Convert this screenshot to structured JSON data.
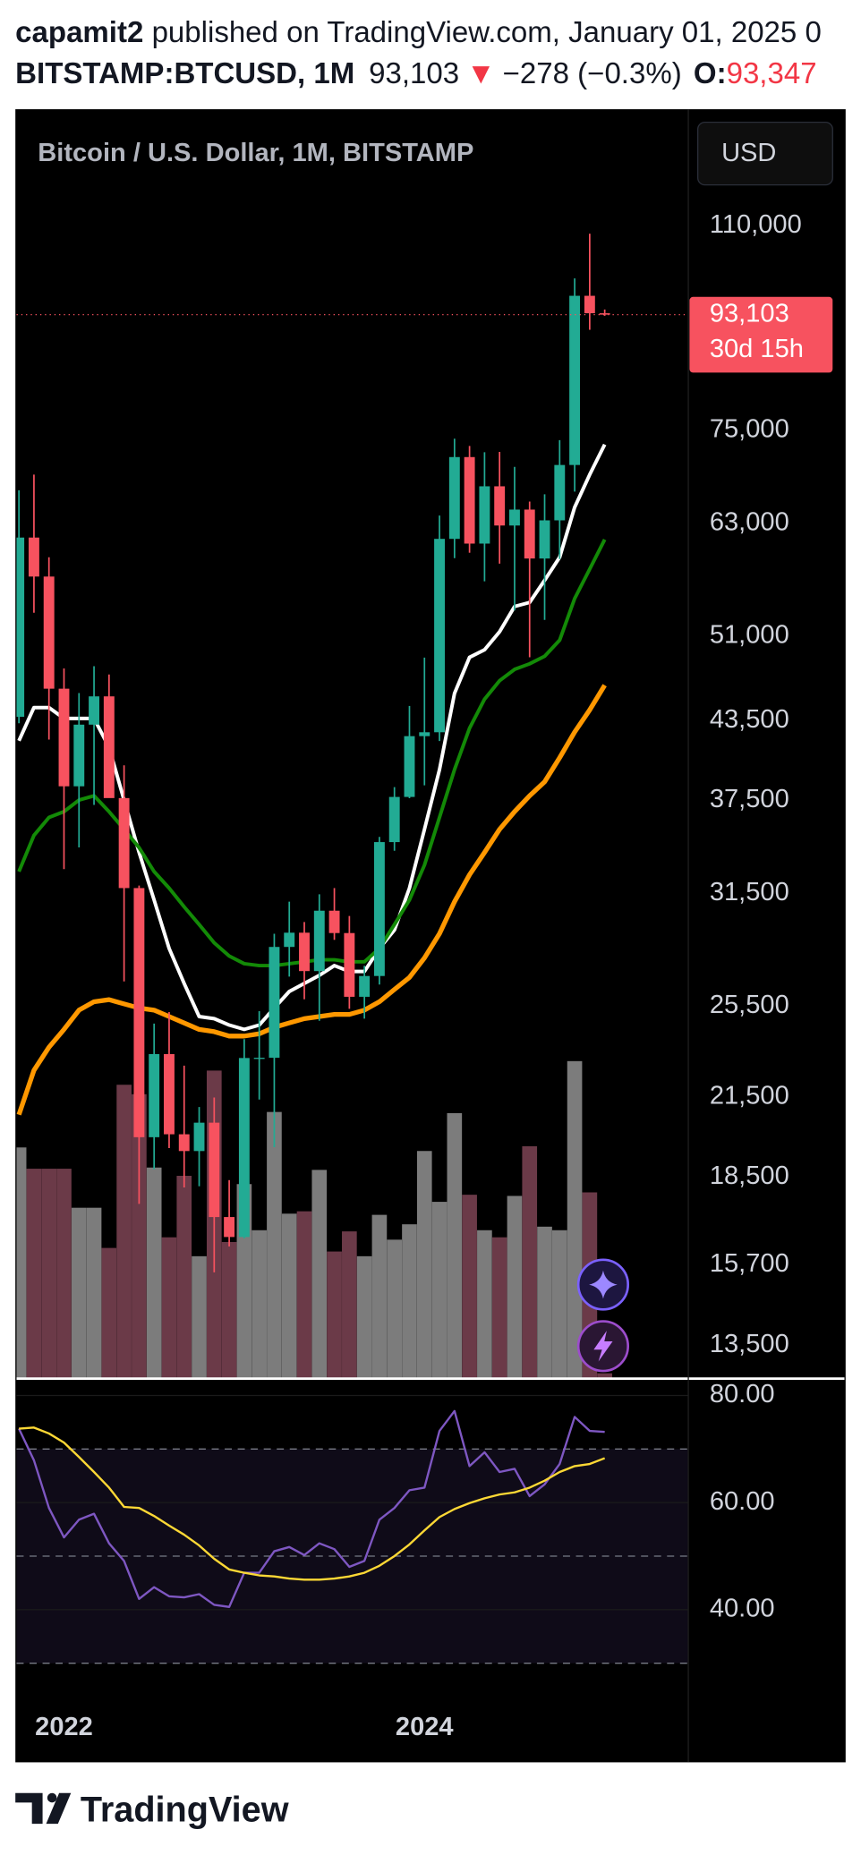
{
  "header": {
    "author": "capamit2",
    "published": "published on TradingView.com, January 01, 2025 0",
    "symbol": "BITSTAMP:BTCUSD, 1M",
    "last": "93,103",
    "arrow": "▼",
    "change": "−278 (−0.3%)",
    "open_label": "O:",
    "open_value": "93,347"
  },
  "footer": {
    "brand": "TradingView"
  },
  "chart_data": {
    "type": "candlestick",
    "title": "Bitcoin / U.S. Dollar, 1M, BITSTAMP",
    "currency": "USD",
    "log_scale": true,
    "grid": true,
    "up_color": "#22ab94",
    "down_color": "#f7525f",
    "volume_up_color": "#7c7c7c",
    "volume_down_color": "#6b3a48",
    "categories": [
      null,
      null,
      null,
      "2022",
      null,
      null,
      null,
      null,
      null,
      null,
      null,
      null,
      null,
      null,
      null,
      null,
      null,
      null,
      null,
      null,
      null,
      null,
      null,
      null,
      null,
      null,
      null,
      "2024",
      null,
      null,
      null,
      null,
      null,
      null,
      null,
      null,
      null,
      null,
      null,
      null
    ],
    "open": [
      43830,
      61320,
      57000,
      46200,
      38480,
      43190,
      45540,
      37640,
      31800,
      19940,
      23300,
      20050,
      19430,
      20490,
      17170,
      16540,
      23130,
      23140,
      28480,
      29250,
      27220,
      30480,
      29230,
      25940,
      26970,
      34660,
      37720,
      42270,
      42580,
      61170,
      71300,
      60630,
      67500,
      62720,
      64620,
      58960,
      63330,
      70250,
      96450,
      93347
    ],
    "high": [
      67000,
      69000,
      59100,
      47990,
      45820,
      48190,
      47450,
      40020,
      31950,
      24670,
      25210,
      22800,
      21100,
      21480,
      18400,
      23960,
      25250,
      29190,
      31000,
      29840,
      31430,
      31800,
      30180,
      27490,
      35000,
      38420,
      44730,
      48970,
      63900,
      73800,
      72800,
      71950,
      72000,
      70000,
      65600,
      66500,
      73600,
      99650,
      108350,
      94000
    ],
    "low": [
      43300,
      53260,
      42000,
      32950,
      34320,
      37160,
      37700,
      26700,
      17600,
      18780,
      19540,
      18150,
      18190,
      15480,
      16250,
      16500,
      21400,
      19570,
      26940,
      25820,
      24800,
      28860,
      25360,
      24900,
      26540,
      34100,
      37630,
      38550,
      41880,
      59000,
      59600,
      56500,
      58400,
      53500,
      49000,
      52550,
      58900,
      66830,
      90500,
      92900
    ],
    "close": [
      61320,
      57000,
      46200,
      38480,
      43190,
      45540,
      37640,
      31800,
      19940,
      23300,
      20050,
      19430,
      20490,
      17170,
      16540,
      23130,
      23140,
      28480,
      29250,
      27220,
      30480,
      29230,
      25940,
      26970,
      34660,
      37720,
      42270,
      42580,
      61170,
      71300,
      60630,
      67500,
      62720,
      64620,
      58960,
      63330,
      70250,
      96450,
      93347,
      93103
    ],
    "volume": [
      195,
      177,
      177,
      177,
      144,
      144,
      110,
      248,
      240,
      178,
      119,
      171,
      103,
      260,
      115,
      164,
      125,
      225,
      139,
      141,
      176,
      107,
      124,
      103,
      138,
      117,
      130,
      192,
      149,
      224,
      155,
      125,
      119,
      154,
      196,
      128,
      125,
      268,
      157,
      4
    ],
    "overlays": [
      {
        "color": "#ffffff",
        "values": [
          41900,
          44600,
          44600,
          43700,
          43700,
          43700,
          41400,
          37500,
          34000,
          31100,
          28400,
          26600,
          25000,
          24900,
          24600,
          24400,
          24600,
          25400,
          26200,
          26600,
          27000,
          27500,
          27200,
          27200,
          28400,
          29400,
          31800,
          35500,
          39700,
          45800,
          49000,
          49700,
          51400,
          53900,
          54300,
          56600,
          59100,
          64900,
          69000,
          73000
        ]
      },
      {
        "color": "#138a07",
        "values": [
          32800,
          35100,
          36300,
          36700,
          37500,
          37800,
          36700,
          35500,
          34300,
          32800,
          31800,
          30700,
          29700,
          28700,
          28000,
          27600,
          27500,
          27500,
          27600,
          27700,
          27800,
          27800,
          27700,
          27700,
          28400,
          29700,
          31100,
          33200,
          36300,
          39700,
          42900,
          45300,
          46900,
          47900,
          48400,
          49100,
          50600,
          54700,
          57800,
          61100
        ]
      },
      {
        "color": "#ff9800",
        "values": [
          20800,
          22600,
          23600,
          24400,
          25300,
          25700,
          25800,
          25600,
          25400,
          25300,
          25000,
          24700,
          24400,
          24300,
          24100,
          24100,
          24200,
          24500,
          24700,
          24900,
          25000,
          25100,
          25100,
          25300,
          25700,
          26300,
          26900,
          27900,
          29200,
          31000,
          32600,
          34000,
          35500,
          36700,
          37800,
          38800,
          40600,
          42600,
          44400,
          46500
        ]
      }
    ],
    "last_label": "93,103",
    "countdown": "30d 15h",
    "ylim": [
      12700,
      136800
    ],
    "yticks": [
      {
        "value": 110000,
        "label": "110,000"
      },
      {
        "value": 75000,
        "label": "75,000"
      },
      {
        "value": 63000,
        "label": "63,000"
      },
      {
        "value": 51000,
        "label": "51,000"
      },
      {
        "value": 43500,
        "label": "43,500"
      },
      {
        "value": 37500,
        "label": "37,500"
      },
      {
        "value": 31500,
        "label": "31,500"
      },
      {
        "value": 25500,
        "label": "25,500"
      },
      {
        "value": 21500,
        "label": "21,500"
      },
      {
        "value": 18500,
        "label": "18,500"
      },
      {
        "value": 15700,
        "label": "15,700"
      },
      {
        "value": 13500,
        "label": "13,500"
      }
    ],
    "rsi": {
      "type": "line",
      "ylim": [
        24.3,
        82.6
      ],
      "yticks": [
        {
          "value": 80,
          "label": "80.00"
        },
        {
          "value": 60,
          "label": "60.00"
        },
        {
          "value": 40,
          "label": "40.00"
        }
      ],
      "band": [
        30,
        70
      ],
      "levels": [
        70,
        50,
        30
      ],
      "band_color": "#7e57c2",
      "series": [
        {
          "color": "#7e57c2",
          "values": [
            73.8,
            67.9,
            59.0,
            53.5,
            56.8,
            57.9,
            52.4,
            49.1,
            42.0,
            44.2,
            42.5,
            42.3,
            42.9,
            40.9,
            40.5,
            46.9,
            46.9,
            50.9,
            51.7,
            50.2,
            52.4,
            51.3,
            48.0,
            49.1,
            56.8,
            59.0,
            62.3,
            62.8,
            73.4,
            77.1,
            66.8,
            69.4,
            65.7,
            66.3,
            61.2,
            63.4,
            67.2,
            76.0,
            73.4,
            73.2
          ]
        },
        {
          "color": "#fdd835",
          "values": [
            73.8,
            74.0,
            72.9,
            71.2,
            68.5,
            65.7,
            62.8,
            59.2,
            59.0,
            57.5,
            55.7,
            54.0,
            52.0,
            49.5,
            47.5,
            46.9,
            46.4,
            46.2,
            45.8,
            45.6,
            45.6,
            45.8,
            46.2,
            46.9,
            48.2,
            50.0,
            52.2,
            54.8,
            57.3,
            58.8,
            59.9,
            60.8,
            61.5,
            61.9,
            62.8,
            64.1,
            65.7,
            66.8,
            67.2,
            68.3
          ]
        }
      ]
    }
  }
}
